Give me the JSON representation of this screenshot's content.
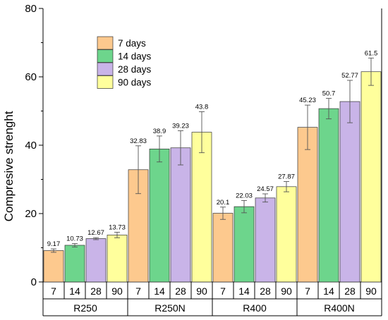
{
  "chart_data": {
    "type": "bar",
    "title": "",
    "xlabel": "",
    "ylabel": "Compresive strenght",
    "ylim": [
      0,
      80
    ],
    "yticks": [
      0,
      20,
      40,
      60,
      80
    ],
    "groups": [
      "R250",
      "R250N",
      "R400",
      "R400N"
    ],
    "categories": [
      "7",
      "14",
      "28",
      "90"
    ],
    "legend_position": "top-left",
    "grid": false,
    "series": [
      {
        "name": "7 days",
        "color": "#FDC98E",
        "values": [
          9.17,
          32.83,
          20.1,
          45.23
        ],
        "errors": [
          0.5,
          7.0,
          1.8,
          6.5
        ],
        "labels": [
          "9.17",
          "32.83",
          "20.1",
          "45.23"
        ]
      },
      {
        "name": "14 days",
        "color": "#6DD58C",
        "values": [
          10.73,
          38.9,
          22.03,
          50.7
        ],
        "errors": [
          0.5,
          3.8,
          1.8,
          3.0
        ],
        "labels": [
          "10.73",
          "38.9",
          "22.03",
          "50.7"
        ]
      },
      {
        "name": "28 days",
        "color": "#C9B4E8",
        "values": [
          12.67,
          39.23,
          24.57,
          52.77
        ],
        "errors": [
          0.3,
          5.0,
          1.2,
          6.2
        ],
        "labels": [
          "12.67",
          "39.23",
          "24.57",
          "52.77"
        ]
      },
      {
        "name": "90 days",
        "color": "#FFFF9C",
        "values": [
          13.73,
          43.8,
          27.87,
          61.5
        ],
        "errors": [
          0.8,
          6.0,
          1.5,
          4.0
        ],
        "labels": [
          "13.73",
          "43.8",
          "27.87",
          "61.5"
        ]
      }
    ]
  }
}
